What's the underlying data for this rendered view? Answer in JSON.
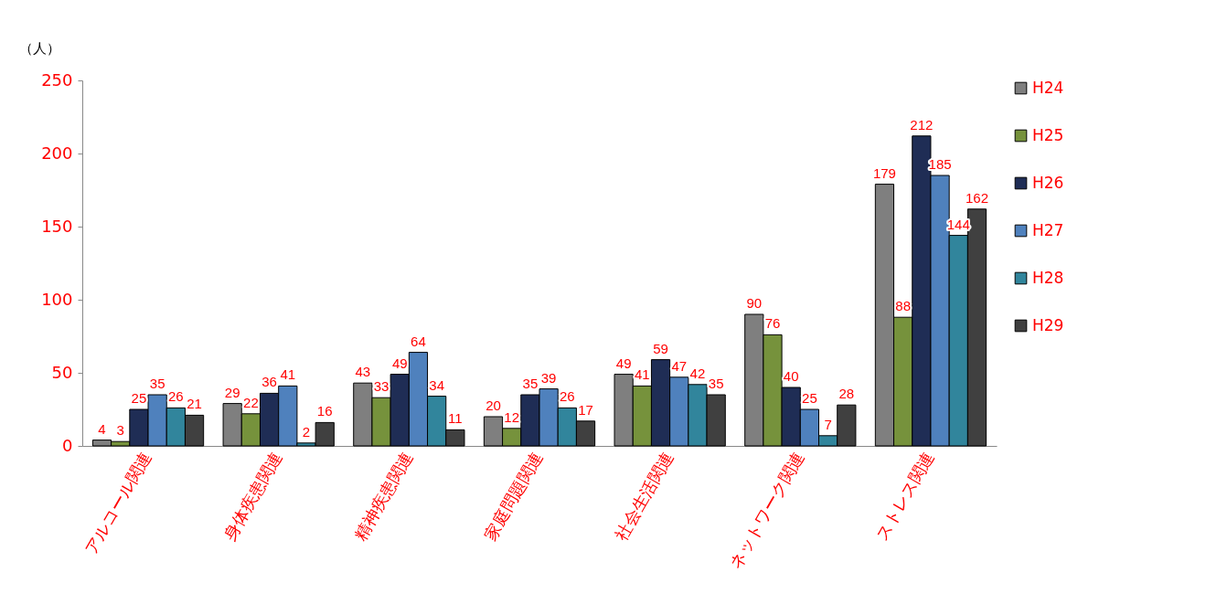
{
  "chart_data": {
    "type": "bar",
    "ylabel": "（人）",
    "categories": [
      "アルコール関連",
      "身体疾患関連",
      "精神疾患関連",
      "家庭問題関連",
      "社会生活関連",
      "ネットワーク関連",
      "ストレス関連"
    ],
    "series": [
      {
        "name": "H24",
        "color": "#7f7f7f",
        "values": [
          4,
          29,
          43,
          20,
          49,
          90,
          179
        ]
      },
      {
        "name": "H25",
        "color": "#76923c",
        "values": [
          3,
          22,
          33,
          12,
          41,
          76,
          88
        ]
      },
      {
        "name": "H26",
        "color": "#1f2d55",
        "values": [
          25,
          36,
          49,
          35,
          59,
          40,
          212
        ]
      },
      {
        "name": "H27",
        "color": "#4f81bd",
        "values": [
          35,
          41,
          64,
          39,
          47,
          25,
          185
        ]
      },
      {
        "name": "H28",
        "color": "#31859c",
        "values": [
          26,
          2,
          34,
          26,
          42,
          7,
          144
        ]
      },
      {
        "name": "H29",
        "color": "#404040",
        "values": [
          21,
          16,
          11,
          17,
          35,
          28,
          162
        ]
      }
    ],
    "ylim": [
      0,
      250
    ],
    "yticks": [
      0,
      50,
      100,
      150,
      200,
      250
    ],
    "grid": false,
    "legend": "right",
    "data_labels": true
  }
}
